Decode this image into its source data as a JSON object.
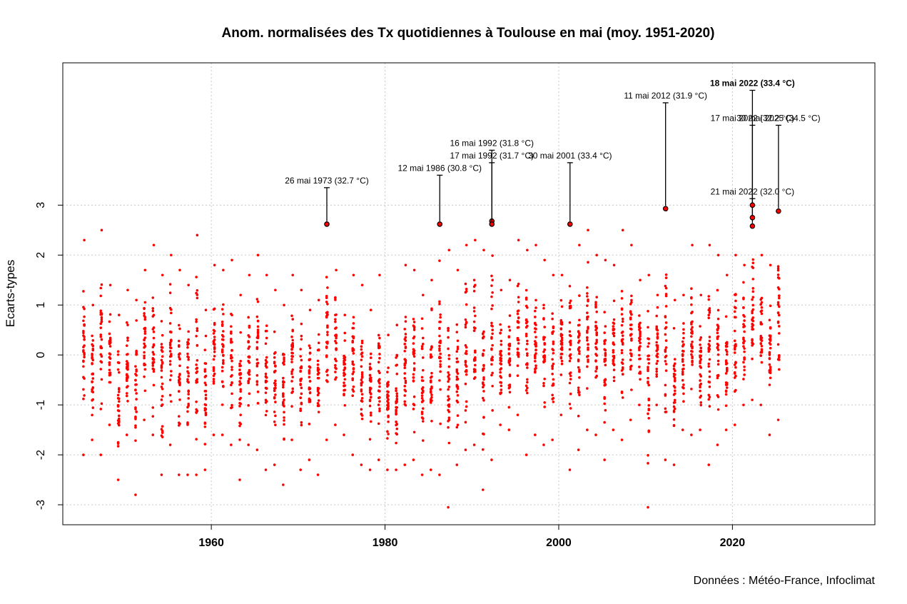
{
  "chart_data": {
    "type": "scatter",
    "title": "Anom. normalisées des Tx quotidiennes à Toulouse en mai (moy. 1951-2020)",
    "xlabel": "",
    "ylabel": "Ecarts-types",
    "source": "Données : Météo-France, Infoclimat",
    "xlim": [
      1942.9,
      2036.4
    ],
    "ylim": [
      -3.4,
      5.85
    ],
    "x_ticks": [
      1960,
      1980,
      2000,
      2020
    ],
    "y_ticks": [
      -3,
      -2,
      -1,
      0,
      1,
      2,
      3
    ],
    "grid": true,
    "point_color": "#ff0000",
    "highlight_color": "#000000",
    "series_note": "daily maximum temperature anomalies, 31 values per year, 1945-2025",
    "years": [
      1945,
      1946,
      1947,
      1948,
      1949,
      1950,
      1951,
      1952,
      1953,
      1954,
      1955,
      1956,
      1957,
      1958,
      1959,
      1960,
      1961,
      1962,
      1963,
      1964,
      1965,
      1966,
      1967,
      1968,
      1969,
      1970,
      1971,
      1972,
      1973,
      1974,
      1975,
      1976,
      1977,
      1978,
      1979,
      1980,
      1981,
      1982,
      1983,
      1984,
      1985,
      1986,
      1987,
      1988,
      1989,
      1990,
      1991,
      1992,
      1993,
      1994,
      1995,
      1996,
      1997,
      1998,
      1999,
      2000,
      2001,
      2002,
      2003,
      2004,
      2005,
      2006,
      2007,
      2008,
      2009,
      2010,
      2011,
      2012,
      2013,
      2014,
      2015,
      2016,
      2017,
      2018,
      2019,
      2020,
      2021,
      2022,
      2023,
      2024,
      2025
    ],
    "year_min": [
      -2.0,
      -1.7,
      -2.0,
      -1.4,
      -2.5,
      -1.6,
      -2.8,
      -1.3,
      -1.6,
      -2.4,
      -1.8,
      -2.4,
      -2.4,
      -2.4,
      -2.3,
      -1.6,
      -1.6,
      -1.8,
      -2.5,
      -1.8,
      -1.9,
      -2.3,
      -2.2,
      -2.6,
      -1.7,
      -2.3,
      -2.1,
      -2.4,
      -1.7,
      -1.4,
      -1.6,
      -2.0,
      -2.2,
      -2.3,
      -2.1,
      -2.3,
      -2.3,
      -2.2,
      -2.1,
      -2.4,
      -2.3,
      -2.4,
      -3.05,
      -2.2,
      -1.9,
      -1.8,
      -2.7,
      -2.1,
      -1.4,
      -1.5,
      -1.2,
      -2.0,
      -1.6,
      -1.8,
      -1.7,
      -1.2,
      -2.3,
      -1.9,
      -1.5,
      -1.6,
      -2.1,
      -1.5,
      -1.7,
      -1.3,
      -1.0,
      -3.05,
      -1.0,
      -2.1,
      -2.2,
      -1.5,
      -1.6,
      -1.5,
      -2.2,
      -1.8,
      -1.5,
      -1.4,
      -1.0,
      -0.9,
      -1.0,
      -1.6,
      -1.3
    ],
    "year_max": [
      2.3,
      1.0,
      2.5,
      1.4,
      0.8,
      1.3,
      1.1,
      1.7,
      2.2,
      1.6,
      2.0,
      1.7,
      1.4,
      2.4,
      0.9,
      1.8,
      1.7,
      1.9,
      1.2,
      1.6,
      2.0,
      1.6,
      1.3,
      1.0,
      1.6,
      1.3,
      0.9,
      1.1,
      2.6,
      1.7,
      0.8,
      1.6,
      1.4,
      0.9,
      1.6,
      0.4,
      0.6,
      1.8,
      1.7,
      1.2,
      1.5,
      2.6,
      2.1,
      1.7,
      2.2,
      2.3,
      2.1,
      2.7,
      1.3,
      1.5,
      2.3,
      2.1,
      2.2,
      1.9,
      1.6,
      1.6,
      2.6,
      2.2,
      2.5,
      2.0,
      1.9,
      1.8,
      2.5,
      2.2,
      1.5,
      1.6,
      1.2,
      2.9,
      1.1,
      1.2,
      2.2,
      1.2,
      2.2,
      2.0,
      1.6,
      2.0,
      1.8,
      3.0,
      2.0,
      1.8,
      2.9
    ],
    "points_per_year": 31,
    "highlights": [
      {
        "year": 1973,
        "value": 2.62,
        "label": "26 mai 1973 (32.7 °C)",
        "label_y": 3.35
      },
      {
        "year": 1986,
        "value": 2.62,
        "label": "12 mai 1986 (30.8 °C)",
        "label_y": 3.6
      },
      {
        "year": 1992,
        "value": 2.68,
        "label": "16 mai 1992 (31.8 °C)",
        "label_y": 4.1
      },
      {
        "year": 1992,
        "value": 2.62,
        "label": "17 mai 1992 (31.7 °C)",
        "label_y": 3.85
      },
      {
        "year": 2001,
        "value": 2.62,
        "label": "30 mai 2001 (33.4 °C)",
        "label_y": 3.85
      },
      {
        "year": 2012,
        "value": 2.93,
        "label": "11 mai 2012 (31.9 °C)",
        "label_y": 5.05
      },
      {
        "year": 2022,
        "value": 2.58,
        "label": "18 mai 2022 (33.4 °C)",
        "label_y": 5.3,
        "bold": true
      },
      {
        "year": 2022,
        "value": 2.75,
        "label": "17 mai 2022 (32.2 °C)",
        "label_y": 4.6
      },
      {
        "year": 2022,
        "value": 3.0,
        "label": "21 mai 2022 (32.0 °C)",
        "label_y": 3.13
      },
      {
        "year": 2025,
        "value": 2.88,
        "label": "30 mai 2025 (34.5 °C)",
        "label_y": 4.6
      }
    ]
  }
}
